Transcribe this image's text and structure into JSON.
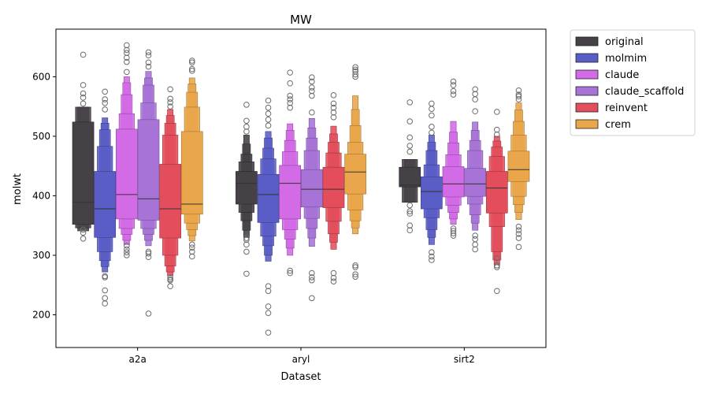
{
  "chart_data": {
    "type": "boxen",
    "title": "MW",
    "xlabel": "Dataset",
    "ylabel": "molwt",
    "categories": [
      "a2a",
      "aryl",
      "sirt2"
    ],
    "ylim": [
      145,
      680
    ],
    "yticks": [
      200,
      300,
      400,
      500,
      600
    ],
    "grid": false,
    "legend_position": "outside-top-right",
    "series": [
      {
        "name": "original",
        "color": "#454147",
        "edge": "#2a282b",
        "stats": [
          {
            "median": 389,
            "letters": [
              [
                352,
                524
              ],
              [
                346,
                549
              ],
              [
                341,
                549
              ]
            ],
            "outliers": [
              328,
              338,
              343,
              555,
              565,
              572,
              586,
              637
            ]
          },
          {
            "median": 421,
            "letters": [
              [
                386,
                441
              ],
              [
                372,
                457
              ],
              [
                358,
                470
              ],
              [
                342,
                487
              ],
              [
                330,
                502
              ]
            ],
            "outliers": [
              269,
              306,
              318,
              326,
              329,
              508,
              516,
              526,
              553
            ]
          },
          {
            "median": 418,
            "letters": [
              [
                415,
                448
              ],
              [
                389,
                461
              ],
              [
                389,
                461
              ]
            ],
            "outliers": [
              342,
              350,
              370,
              374,
              384,
              474,
              484,
              498,
              525,
              557
            ]
          }
        ]
      },
      {
        "name": "molmim",
        "color": "#5a5dc6",
        "edge": "#3d3f8a",
        "stats": [
          {
            "median": 378,
            "letters": [
              [
                330,
                441
              ],
              [
                306,
                483
              ],
              [
                291,
                511
              ],
              [
                281,
                522
              ],
              [
                272,
                531
              ]
            ],
            "outliers": [
              219,
              228,
              241,
              263,
              265,
              545,
              556,
              562,
              575
            ]
          },
          {
            "median": 402,
            "letters": [
              [
                355,
                436
              ],
              [
                332,
                462
              ],
              [
                316,
                480
              ],
              [
                300,
                497
              ],
              [
                290,
                508
              ]
            ],
            "outliers": [
              170,
              203,
              214,
              240,
              248,
              518,
              528,
              538,
              548,
              560
            ]
          },
          {
            "median": 407,
            "letters": [
              [
                378,
                432
              ],
              [
                363,
                452
              ],
              [
                343,
                476
              ],
              [
                330,
                490
              ],
              [
                318,
                502
              ]
            ],
            "outliers": [
              292,
              298,
              305,
              506,
              516,
              535,
              546,
              555
            ]
          }
        ]
      },
      {
        "name": "claude",
        "color": "#d36ae6",
        "edge": "#8e47a0",
        "stats": [
          {
            "median": 402,
            "letters": [
              [
                361,
                512
              ],
              [
                345,
                538
              ],
              [
                335,
                570
              ],
              [
                325,
                590
              ],
              [
                318,
                600
              ]
            ],
            "outliers": [
              300,
              305,
              310,
              316,
              608,
              625,
              632,
              640,
              645,
              653
            ]
          },
          {
            "median": 421,
            "letters": [
              [
                361,
                451
              ],
              [
                343,
                474
              ],
              [
                327,
                493
              ],
              [
                312,
                510
              ],
              [
                300,
                521
              ]
            ],
            "outliers": [
              270,
              274,
              548,
              556,
              562,
              568,
              589,
              607
            ]
          },
          {
            "median": 420,
            "letters": [
              [
                398,
                449
              ],
              [
                384,
                469
              ],
              [
                372,
                489
              ],
              [
                361,
                507
              ],
              [
                352,
                525
              ]
            ],
            "outliers": [
              333,
              337,
              341,
              345,
              570,
              576,
              586,
              592
            ]
          }
        ]
      },
      {
        "name": "claude_scaffold",
        "color": "#a773d6",
        "edge": "#70509a",
        "stats": [
          {
            "median": 395,
            "letters": [
              [
                359,
                528
              ],
              [
                345,
                556
              ],
              [
                335,
                586
              ],
              [
                325,
                598
              ],
              [
                316,
                609
              ]
            ],
            "outliers": [
              202,
              297,
              303,
              306,
              617,
              624,
              636,
              641
            ]
          },
          {
            "median": 411,
            "letters": [
              [
                381,
                444
              ],
              [
                362,
                476
              ],
              [
                345,
                497
              ],
              [
                329,
                514
              ],
              [
                315,
                530
              ]
            ],
            "outliers": [
              228,
              258,
              263,
              270,
              540,
              568,
              576,
              582,
              592,
              599
            ]
          },
          {
            "median": 420,
            "letters": [
              [
                399,
                446
              ],
              [
                386,
                476
              ],
              [
                368,
                493
              ],
              [
                354,
                510
              ],
              [
                342,
                524
              ]
            ],
            "outliers": [
              310,
              318,
              327,
              333,
              542,
              562,
              571,
              579
            ]
          }
        ]
      },
      {
        "name": "reinvent",
        "color": "#e44e5c",
        "edge": "#9b3440",
        "stats": [
          {
            "median": 378,
            "letters": [
              [
                329,
                453
              ],
              [
                300,
                502
              ],
              [
                282,
                522
              ],
              [
                272,
                535
              ],
              [
                266,
                545
              ]
            ],
            "outliers": [
              248,
              258,
              260,
              263,
              550,
              557,
              563,
              579
            ]
          },
          {
            "median": 411,
            "letters": [
              [
                380,
                448
              ],
              [
                357,
                472
              ],
              [
                336,
                490
              ],
              [
                322,
                504
              ],
              [
                310,
                517
              ]
            ],
            "outliers": [
              256,
              262,
              270,
              532,
              540,
              548,
              555,
              569
            ]
          },
          {
            "median": 413,
            "letters": [
              [
                371,
                441
              ],
              [
                348,
                466
              ],
              [
                306,
                482
              ],
              [
                292,
                492
              ],
              [
                284,
                500
              ]
            ],
            "outliers": [
              240,
              280,
              283,
              295,
              503,
              511,
              541
            ]
          }
        ]
      },
      {
        "name": "crem",
        "color": "#e9a64a",
        "edge": "#a27434",
        "stats": [
          {
            "median": 386,
            "letters": [
              [
                369,
                508
              ],
              [
                354,
                549
              ],
              [
                343,
                574
              ],
              [
                333,
                588
              ],
              [
                324,
                598
              ]
            ],
            "outliers": [
              298,
              306,
              313,
              318,
              610,
              613,
              624,
              627
            ]
          },
          {
            "median": 440,
            "letters": [
              [
                403,
                470
              ],
              [
                376,
                490
              ],
              [
                358,
                518
              ],
              [
                346,
                545
              ],
              [
                336,
                568
              ]
            ],
            "outliers": [
              264,
              268,
              280,
              283,
              600,
              604,
              609,
              612,
              616
            ]
          },
          {
            "median": 444,
            "letters": [
              [
                424,
                475
              ],
              [
                399,
                502
              ],
              [
                385,
                525
              ],
              [
                372,
                544
              ],
              [
                360,
                556
              ]
            ],
            "outliers": [
              314,
              329,
              336,
              342,
              348,
              562,
              567,
              570,
              577
            ]
          }
        ]
      }
    ]
  }
}
